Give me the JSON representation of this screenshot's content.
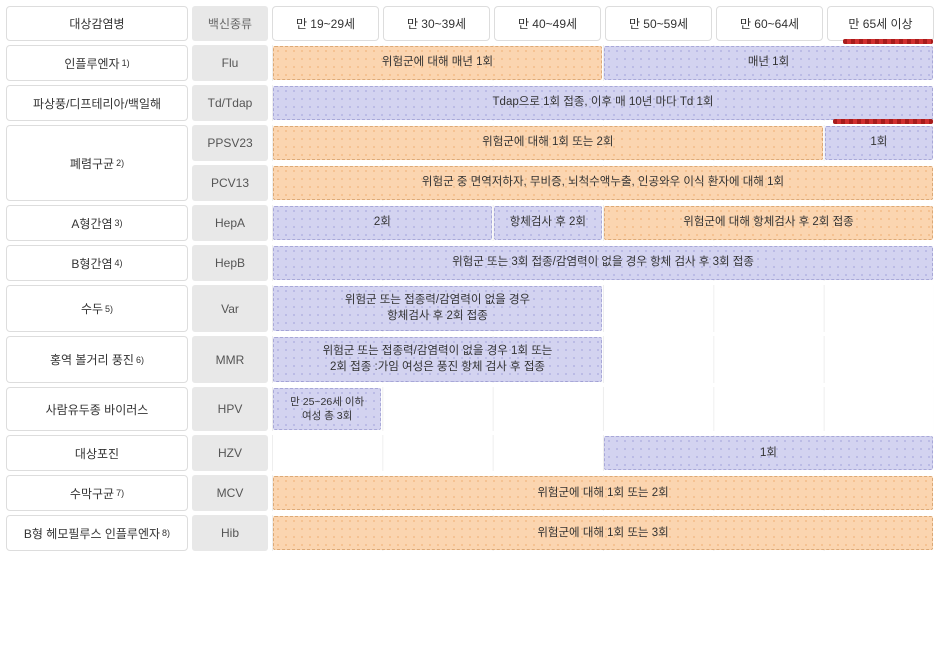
{
  "headers": {
    "disease": "대상감염병",
    "vaccineType": "백신종류",
    "ages": [
      "만 19~29세",
      "만 30~39세",
      "만 40~49세",
      "만 50~59세",
      "만 60~64세",
      "만 65세 이상"
    ]
  },
  "colors": {
    "orange_bg": "#fbd5b0",
    "purple_bg": "#d3d3f0",
    "red_marker": "#c62828",
    "vaccine_bg": "#e8e8e8",
    "border": "#ddd"
  },
  "rows": [
    {
      "disease": "인플루엔자",
      "sup": "1)",
      "vaccine": "Flu",
      "redMarker": "r1",
      "bars": [
        {
          "cls": "orange",
          "span": 3,
          "text": "위험군에 대해 매년 1회"
        },
        {
          "cls": "purple",
          "span": 3,
          "text": "매년 1회"
        }
      ]
    },
    {
      "disease": "파상풍/디프테리아/백일해",
      "sup": "",
      "vaccine": "Td/Tdap",
      "bars": [
        {
          "cls": "purple",
          "span": 6,
          "text": "Tdap으로 1회 접종, 이후 매 10년 마다 Td 1회"
        }
      ]
    },
    {
      "disease": "폐렴구균",
      "sup": "2)",
      "rowSpan": 2,
      "vaccine": "PPSV23",
      "redMarker": "r2",
      "bars": [
        {
          "cls": "orange",
          "span": 5,
          "text": "위험군에 대해 1회 또는 2회"
        },
        {
          "cls": "purple",
          "span": 1,
          "text": "1회"
        }
      ]
    },
    {
      "continued": true,
      "vaccine": "PCV13",
      "bars": [
        {
          "cls": "orange",
          "span": 6,
          "text": "위험군 중 면역저하자, 무비증, 뇌척수액누출, 인공와우 이식 환자에 대해 1회"
        }
      ]
    },
    {
      "disease": "A형간염",
      "sup": "3)",
      "vaccine": "HepA",
      "bars": [
        {
          "cls": "purple",
          "span": 2,
          "text": "2회"
        },
        {
          "cls": "purple",
          "span": 1,
          "text": "항체검사 후 2회"
        },
        {
          "cls": "orange",
          "span": 3,
          "text": "위험군에 대해 항체검사 후 2회 접종"
        }
      ]
    },
    {
      "disease": "B형간염",
      "sup": "4)",
      "vaccine": "HepB",
      "bars": [
        {
          "cls": "purple",
          "span": 6,
          "text": "위험군 또는 3회 접종/감염력이 없을 경우 항체 검사 후 3회 접종"
        }
      ]
    },
    {
      "disease": "수두",
      "sup": "5)",
      "vaccine": "Var",
      "bars": [
        {
          "cls": "purple",
          "span": 3,
          "text": "위험군 또는 접종력/감염력이 없을 경우\n항체검사 후 2회 접종"
        },
        {
          "cls": "empty",
          "span": 3,
          "text": ""
        }
      ]
    },
    {
      "disease": "홍역 볼거리 풍진",
      "sup": "6)",
      "vaccine": "MMR",
      "bars": [
        {
          "cls": "purple",
          "span": 3,
          "text": "위험군 또는 접종력/감염력이 없을 경우 1회 또는\n2회 접종 :가임 여성은 풍진 항체 검사 후 접종"
        },
        {
          "cls": "empty",
          "span": 3,
          "text": ""
        }
      ]
    },
    {
      "disease": "사람유두종 바이러스",
      "sup": "",
      "vaccine": "HPV",
      "bars": [
        {
          "cls": "purple",
          "span": 1,
          "text": "만 25~26세 이하\n여성 총 3회",
          "narrow": true
        },
        {
          "cls": "empty",
          "span": 5,
          "text": ""
        }
      ]
    },
    {
      "disease": "대상포진",
      "sup": "",
      "vaccine": "HZV",
      "bars": [
        {
          "cls": "empty",
          "span": 3,
          "text": ""
        },
        {
          "cls": "purple",
          "span": 3,
          "text": "1회"
        }
      ]
    },
    {
      "disease": "수막구균",
      "sup": "7)",
      "vaccine": "MCV",
      "bars": [
        {
          "cls": "orange",
          "span": 6,
          "text": "위험군에 대해 1회 또는 2회"
        }
      ]
    },
    {
      "disease": "B형 헤모필루스 인플루엔자",
      "sup": "8)",
      "vaccine": "Hib",
      "bars": [
        {
          "cls": "orange",
          "span": 6,
          "text": "위험군에 대해 1회 또는 3회"
        }
      ]
    }
  ]
}
